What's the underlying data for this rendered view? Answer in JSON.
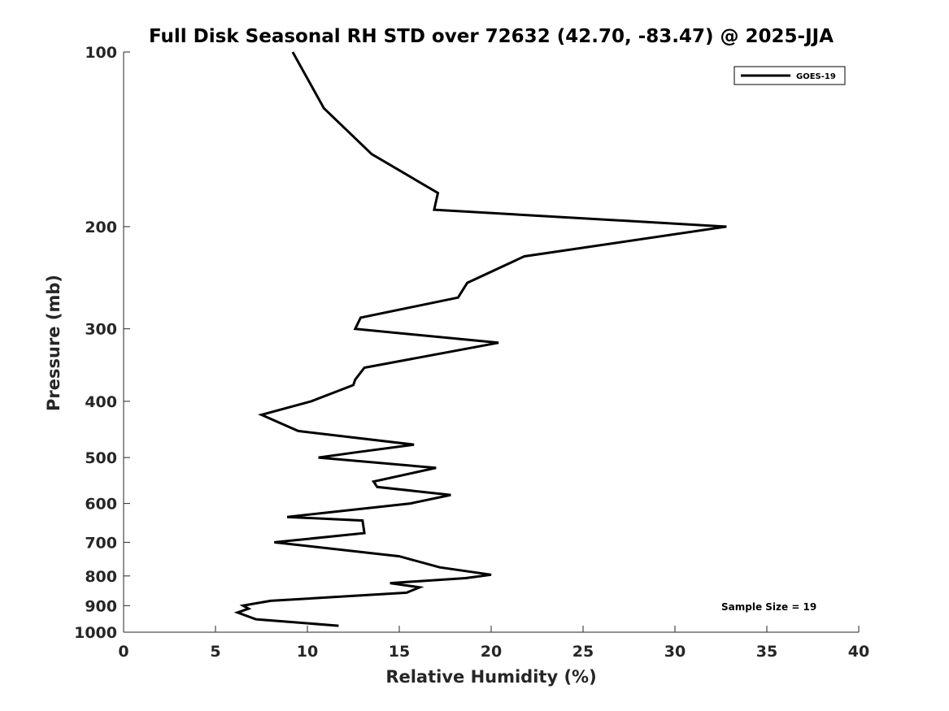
{
  "chart_data": {
    "type": "line",
    "title": "Full Disk Seasonal RH STD over 72632 (42.70, -83.47) @ 2025-JJA",
    "xlabel": "Relative Humidity (%)",
    "ylabel": "Pressure (mb)",
    "xlim": [
      0,
      40
    ],
    "ylim": [
      100,
      1000
    ],
    "y_scale": "log",
    "y_reversed": true,
    "x_ticks": [
      0,
      5,
      10,
      15,
      20,
      25,
      30,
      35,
      40
    ],
    "y_ticks": [
      100,
      200,
      300,
      400,
      500,
      600,
      700,
      800,
      900,
      1000
    ],
    "grid": false,
    "legend_position": "top-right",
    "series": [
      {
        "name": "GOES-19",
        "color": "#000000",
        "points": [
          [
            9.2,
            100
          ],
          [
            10.9,
            125
          ],
          [
            13.5,
            150
          ],
          [
            17.1,
            175
          ],
          [
            16.9,
            187
          ],
          [
            32.8,
            200
          ],
          [
            21.8,
            225
          ],
          [
            18.7,
            250
          ],
          [
            18.2,
            265
          ],
          [
            12.9,
            287
          ],
          [
            12.6,
            300
          ],
          [
            20.4,
            317
          ],
          [
            13.1,
            350
          ],
          [
            12.6,
            367
          ],
          [
            12.5,
            375
          ],
          [
            10.2,
            400
          ],
          [
            7.5,
            422
          ],
          [
            9.5,
            450
          ],
          [
            15.8,
            475
          ],
          [
            12.6,
            490
          ],
          [
            10.6,
            500
          ],
          [
            17.0,
            521
          ],
          [
            13.6,
            550
          ],
          [
            13.8,
            562
          ],
          [
            17.8,
            580
          ],
          [
            15.6,
            600
          ],
          [
            8.9,
            633
          ],
          [
            13.0,
            642
          ],
          [
            13.1,
            675
          ],
          [
            8.2,
            700
          ],
          [
            15.0,
            740
          ],
          [
            17.2,
            773
          ],
          [
            20.0,
            796
          ],
          [
            18.6,
            807
          ],
          [
            14.5,
            823
          ],
          [
            16.1,
            837
          ],
          [
            15.4,
            855
          ],
          [
            8.0,
            883
          ],
          [
            6.5,
            900
          ],
          [
            6.8,
            911
          ],
          [
            6.2,
            925
          ],
          [
            7.2,
            950
          ],
          [
            11.7,
            975
          ]
        ]
      }
    ],
    "annotations": [
      "Sample Size = 19"
    ]
  }
}
